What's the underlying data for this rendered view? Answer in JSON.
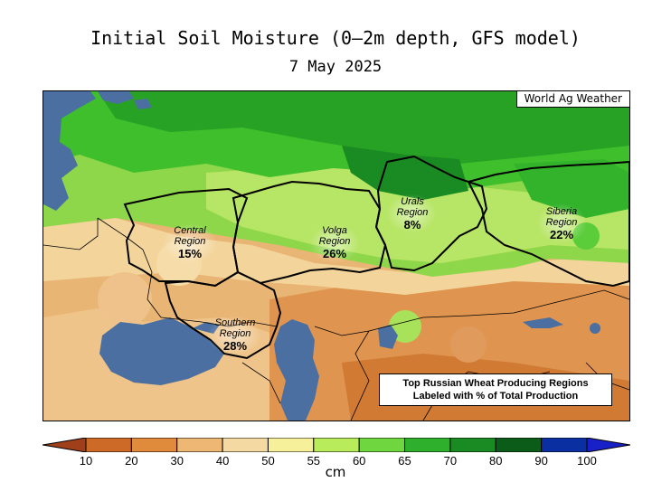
{
  "header": {
    "title": "Initial Soil Moisture (0—2m depth, GFS model)",
    "date": "7 May 2025"
  },
  "map": {
    "credit": "World Ag Weather",
    "note_line1": "Top Russian Wheat Producing Regions",
    "note_line2": "Labeled with % of Total Production",
    "regions": [
      {
        "name_line1": "Central",
        "name_line2": "Region",
        "percent": "15%"
      },
      {
        "name_line1": "Volga",
        "name_line2": "Region",
        "percent": "26%"
      },
      {
        "name_line1": "Urals",
        "name_line2": "Region",
        "percent": "8%"
      },
      {
        "name_line1": "Siberia",
        "name_line2": "Region",
        "percent": "22%"
      },
      {
        "name_line1": "Southern",
        "name_line2": "Region",
        "percent": "28%"
      }
    ]
  },
  "colorbar": {
    "units": "cm",
    "ticks": [
      "10",
      "20",
      "30",
      "40",
      "50",
      "55",
      "60",
      "65",
      "70",
      "80",
      "90",
      "100"
    ],
    "colors": [
      "#a0401a",
      "#cd6a28",
      "#e08a3c",
      "#efb774",
      "#f4d9a2",
      "#f7f09a",
      "#b8ec5a",
      "#6fd640",
      "#2fb02c",
      "#1a8a22",
      "#0b5c18",
      "#0a2fa0",
      "#1820c8"
    ]
  }
}
